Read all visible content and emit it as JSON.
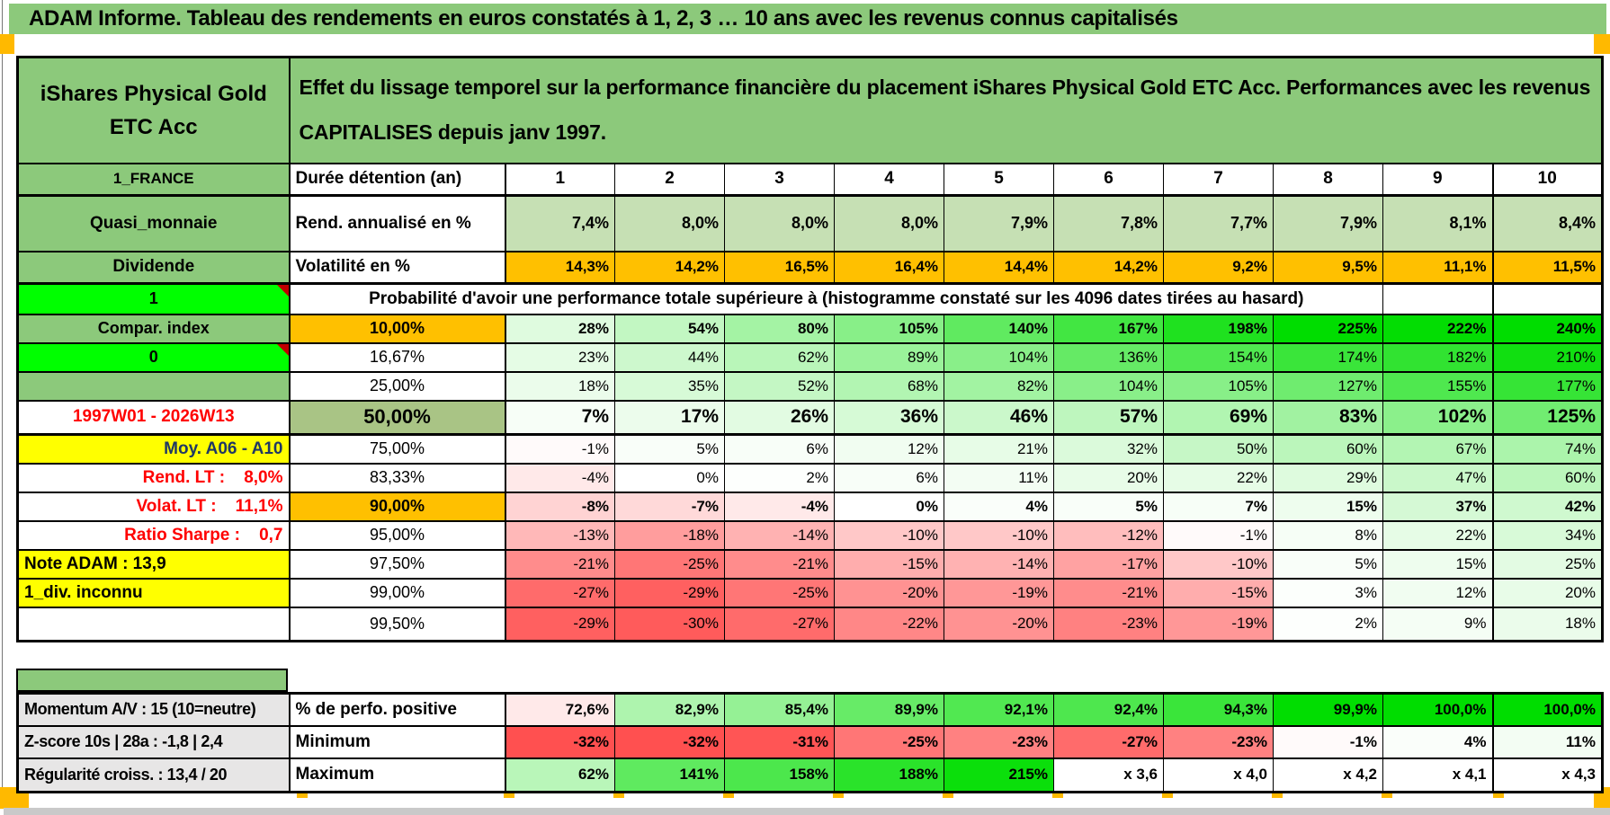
{
  "page_title": "ADAM Informe. Tableau des rendements en euros constatés à 1, 2, 3 … 10 ans avec les revenus connus capitalisés",
  "header": {
    "instrument": "iShares Physical Gold ETC Acc",
    "description": "Effet du lissage temporel sur la performance financière du placement iShares Physical Gold ETC Acc. Performances avec les revenus CAPITALISES depuis janv 1997."
  },
  "colors": {
    "green": "#8cc97b",
    "bright_green": "#00ff00",
    "orange": "#ffc000",
    "yellow": "#ffff00",
    "sage": "#a9c485",
    "gray": "#e7e6e6",
    "red_text": "#ff0000",
    "navy": "#1f3864",
    "marker_red": "#c00000",
    "tick_orange": "#ffb900",
    "rend_bg": "#c6e0b4",
    "scale_green": "#00dd00",
    "scale_red": "#ff5050"
  },
  "columns": [
    "1",
    "2",
    "3",
    "4",
    "5",
    "6",
    "7",
    "8",
    "9",
    "10"
  ],
  "top_rows": [
    {
      "a": "1_FRANCE",
      "b": "Durée détention (an)",
      "kind": "duree",
      "values": [
        "1",
        "2",
        "3",
        "4",
        "5",
        "6",
        "7",
        "8",
        "9",
        "10"
      ]
    },
    {
      "a": "Quasi_monnaie",
      "b": "Rend. annualisé en %",
      "kind": "rend",
      "values": [
        "7,4%",
        "8,0%",
        "8,0%",
        "8,0%",
        "7,9%",
        "7,8%",
        "7,7%",
        "7,9%",
        "8,1%",
        "8,4%"
      ]
    },
    {
      "a": "Dividende",
      "b": "Volatilité en %",
      "kind": "volat",
      "values": [
        "14,3%",
        "14,2%",
        "16,5%",
        "16,4%",
        "14,4%",
        "14,2%",
        "9,2%",
        "9,5%",
        "11,1%",
        "11,5%"
      ]
    }
  ],
  "proba_row": {
    "a": "1",
    "text": "Probabilité d'avoir une performance totale supérieure à (histogramme constaté sur les 4096 dates tirées au hasard)"
  },
  "percentile_rows": [
    {
      "a": "Compar. index",
      "a_style": "a-green",
      "marker": false,
      "p": "10,00%",
      "p_style": "b-orange",
      "bold": true,
      "big": false,
      "last": false,
      "values": [
        "28%",
        "54%",
        "80%",
        "105%",
        "140%",
        "167%",
        "198%",
        "225%",
        "222%",
        "240%"
      ]
    },
    {
      "a": "0",
      "a_style": "a-bright",
      "marker": true,
      "p": "16,67%",
      "p_style": "",
      "bold": false,
      "big": false,
      "last": false,
      "values": [
        "23%",
        "44%",
        "62%",
        "89%",
        "104%",
        "136%",
        "154%",
        "174%",
        "182%",
        "210%"
      ]
    },
    {
      "a": "",
      "a_style": "a-green",
      "marker": false,
      "p": "25,00%",
      "p_style": "",
      "bold": false,
      "big": false,
      "last": false,
      "values": [
        "18%",
        "35%",
        "52%",
        "68%",
        "82%",
        "104%",
        "105%",
        "127%",
        "155%",
        "177%"
      ]
    },
    {
      "a": "1997W01 - 2026W13",
      "a_style": "a-white-red-c",
      "marker": false,
      "p": "50,00%",
      "p_style": "b-sage",
      "bold": true,
      "big": true,
      "last": false,
      "values": [
        "7%",
        "17%",
        "26%",
        "36%",
        "46%",
        "57%",
        "69%",
        "83%",
        "102%",
        "125%"
      ]
    },
    {
      "a": "Moy. A06 - A10",
      "a_style": "a-yellow-navy",
      "marker": false,
      "p": "75,00%",
      "p_style": "",
      "bold": false,
      "big": false,
      "last": false,
      "values": [
        "-1%",
        "5%",
        "6%",
        "12%",
        "21%",
        "32%",
        "50%",
        "60%",
        "67%",
        "74%"
      ]
    },
    {
      "a": "Rend. LT :    8,0%",
      "a_style": "a-white-red",
      "marker": false,
      "p": "83,33%",
      "p_style": "",
      "bold": false,
      "big": false,
      "last": false,
      "values": [
        "-4%",
        "0%",
        "2%",
        "6%",
        "11%",
        "20%",
        "22%",
        "29%",
        "47%",
        "60%"
      ]
    },
    {
      "a": "Volat. LT :    11,1%",
      "a_style": "a-white-red",
      "marker": false,
      "p": "90,00%",
      "p_style": "b-orange",
      "bold": true,
      "big": false,
      "last": false,
      "values": [
        "-8%",
        "-7%",
        "-4%",
        "0%",
        "4%",
        "5%",
        "7%",
        "15%",
        "37%",
        "42%"
      ]
    },
    {
      "a": "Ratio Sharpe :    0,7",
      "a_style": "a-white-red",
      "marker": false,
      "p": "95,00%",
      "p_style": "",
      "bold": false,
      "big": false,
      "last": false,
      "values": [
        "-13%",
        "-18%",
        "-14%",
        "-10%",
        "-10%",
        "-12%",
        "-1%",
        "8%",
        "22%",
        "34%"
      ]
    },
    {
      "a": "Note ADAM : 13,9",
      "a_style": "a-yellow",
      "marker": false,
      "p": "97,50%",
      "p_style": "",
      "bold": false,
      "big": false,
      "last": false,
      "values": [
        "-21%",
        "-25%",
        "-21%",
        "-15%",
        "-14%",
        "-17%",
        "-10%",
        "5%",
        "15%",
        "25%"
      ]
    },
    {
      "a": "1_div. inconnu",
      "a_style": "a-yellow",
      "marker": false,
      "p": "99,00%",
      "p_style": "",
      "bold": false,
      "big": false,
      "last": false,
      "values": [
        "-27%",
        "-29%",
        "-25%",
        "-20%",
        "-19%",
        "-21%",
        "-15%",
        "3%",
        "12%",
        "20%"
      ]
    },
    {
      "a": "",
      "a_style": "a-plain",
      "marker": false,
      "p": "99,50%",
      "p_style": "",
      "bold": false,
      "big": false,
      "last": true,
      "values": [
        "-29%",
        "-30%",
        "-27%",
        "-22%",
        "-20%",
        "-23%",
        "-19%",
        "2%",
        "9%",
        "18%"
      ]
    }
  ],
  "bottom_rows": [
    {
      "a": "Momentum A/V : 15 (10=neutre)",
      "b": "% de perfo. positive",
      "scale": "perfo",
      "bold": true,
      "values": [
        "72,6%",
        "82,9%",
        "85,4%",
        "89,9%",
        "92,1%",
        "92,4%",
        "94,3%",
        "99,9%",
        "100,0%",
        "100,0%"
      ]
    },
    {
      "a": "Z-score 10s | 28a : -1,8 | 2,4",
      "b": "Minimum",
      "scale": "std",
      "bold": true,
      "values": [
        "-32%",
        "-32%",
        "-31%",
        "-25%",
        "-23%",
        "-27%",
        "-23%",
        "-1%",
        "4%",
        "11%"
      ]
    },
    {
      "a": "Régularité croiss. : 13,4 / 20",
      "b": "Maximum",
      "scale": "std",
      "bold": true,
      "values": [
        "62%",
        "141%",
        "158%",
        "188%",
        "215%",
        "x 3,6",
        "x 4,0",
        "x 4,2",
        "x 4,1",
        "x 4,3"
      ]
    }
  ]
}
